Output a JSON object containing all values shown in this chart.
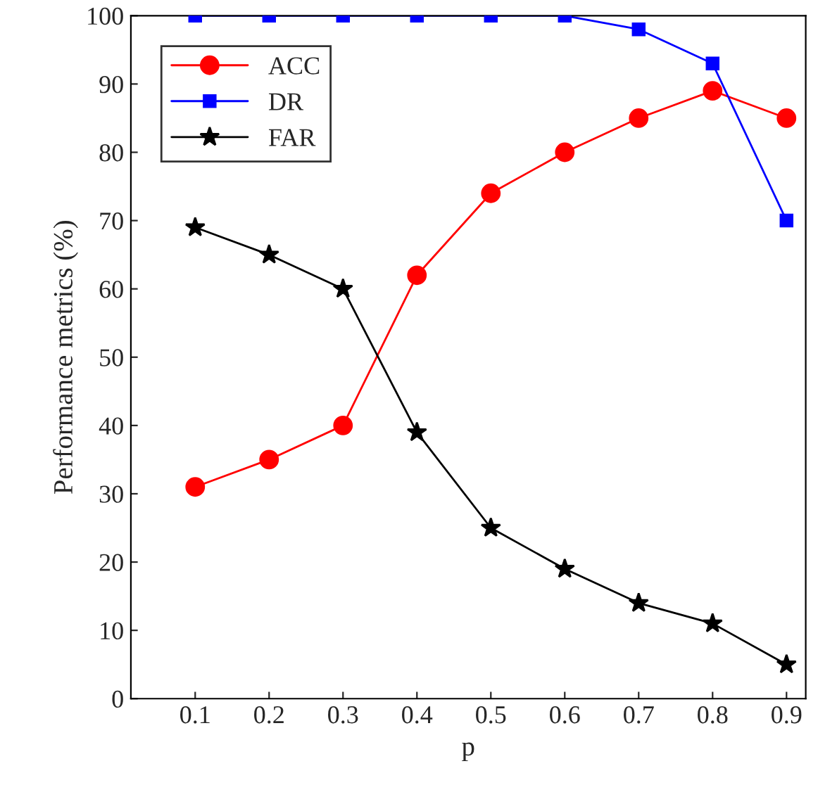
{
  "chart_data": {
    "type": "line",
    "xlabel": "p",
    "ylabel": "Performance metrics (%)",
    "x": [
      0.1,
      0.2,
      0.3,
      0.4,
      0.5,
      0.6,
      0.7,
      0.8,
      0.9
    ],
    "series": [
      {
        "name": "ACC",
        "color": "#ff0000",
        "marker": "circle",
        "values": [
          31,
          35,
          40,
          62,
          74,
          80,
          85,
          89,
          85
        ]
      },
      {
        "name": "DR",
        "color": "#0000ff",
        "marker": "square",
        "values": [
          100,
          100,
          100,
          100,
          100,
          100,
          98,
          93,
          70
        ]
      },
      {
        "name": "FAR",
        "color": "#000000",
        "marker": "star",
        "values": [
          69,
          65,
          60,
          39,
          25,
          19,
          14,
          11,
          5
        ]
      }
    ],
    "xlim": [
      0.013,
      0.926
    ],
    "xticks": [
      0.1,
      0.2,
      0.3,
      0.4,
      0.5,
      0.6,
      0.7,
      0.8,
      0.9
    ],
    "ylim": [
      0,
      100
    ],
    "yticks": [
      0,
      10,
      20,
      30,
      40,
      50,
      60,
      70,
      80,
      90,
      100
    ],
    "grid": false,
    "legend": "top left"
  }
}
